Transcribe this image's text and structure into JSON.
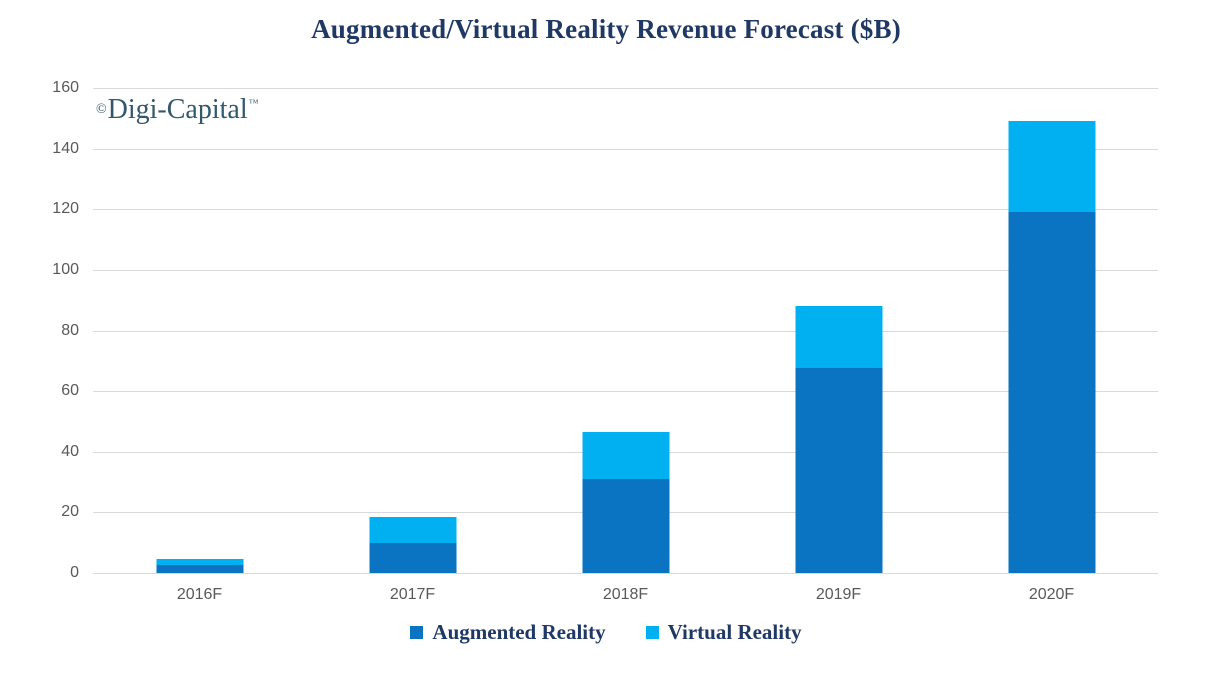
{
  "page": {
    "background": "#ffffff"
  },
  "title": "Augmented/Virtual Reality Revenue Forecast ($B)",
  "watermark": {
    "copyright_symbol": "©",
    "brand": "Digi-Capital",
    "trademark_symbol": "™",
    "color": "#33586B"
  },
  "axis": {
    "tick_label_color": "#595959",
    "gridline_color": "#D9D9D9"
  },
  "legend": {
    "position": "bottom",
    "text_color": "#1F3864"
  },
  "chart_data": {
    "type": "bar",
    "stacked": true,
    "title": "Augmented/Virtual Reality Revenue Forecast ($B)",
    "categories": [
      "2016F",
      "2017F",
      "2018F",
      "2019F",
      "2020F"
    ],
    "series": [
      {
        "name": "Augmented Reality",
        "color": "#0B74C2",
        "values": [
          2.5,
          10,
          31,
          67.5,
          119
        ]
      },
      {
        "name": "Virtual Reality",
        "color": "#00B0F0",
        "values": [
          2,
          8.5,
          15.5,
          20.5,
          30
        ]
      }
    ],
    "totals": [
      4.5,
      18.5,
      46.5,
      88,
      149
    ],
    "xlabel": "",
    "ylabel": "",
    "ylim": [
      0,
      160
    ],
    "yticks": [
      0,
      20,
      40,
      60,
      80,
      100,
      120,
      140,
      160
    ],
    "grid": true,
    "legend_position": "bottom"
  }
}
